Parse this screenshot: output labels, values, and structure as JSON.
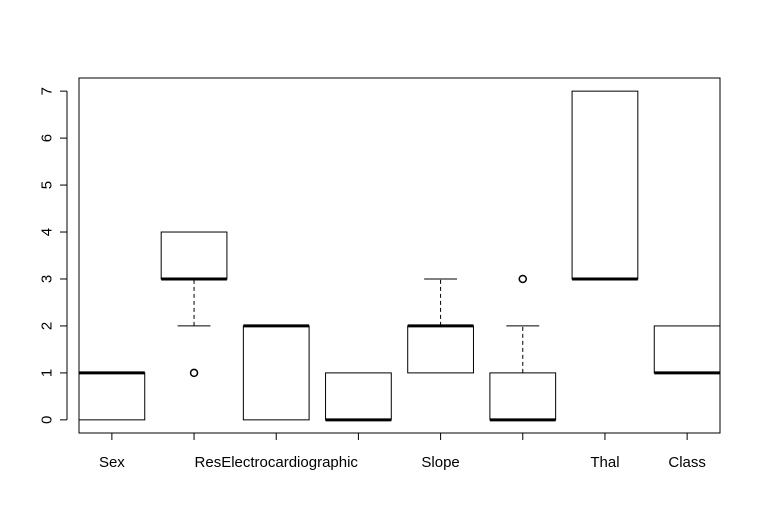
{
  "chart_data": {
    "type": "boxplot",
    "title": "",
    "xlabel": "",
    "ylabel": "",
    "ylim": [
      -0.28,
      7.28
    ],
    "y_ticks": [
      0,
      1,
      2,
      3,
      4,
      5,
      6,
      7
    ],
    "categories": [
      "Sex",
      "",
      "ResElectrocardiographic",
      "",
      "Slope",
      "",
      "Thal",
      "Class"
    ],
    "boxes": [
      {
        "name": "Sex",
        "min": 0,
        "q1": 0,
        "median": 1,
        "q3": 1,
        "max": 1,
        "outliers": []
      },
      {
        "name": "",
        "min": 2,
        "q1": 3,
        "median": 3,
        "q3": 4,
        "max": 4,
        "outliers": [
          1
        ]
      },
      {
        "name": "ResElectrocardiographic",
        "min": 0,
        "q1": 0,
        "median": 2,
        "q3": 2,
        "max": 2,
        "outliers": []
      },
      {
        "name": "",
        "min": 0,
        "q1": 0,
        "median": 0,
        "q3": 1,
        "max": 1,
        "outliers": []
      },
      {
        "name": "Slope",
        "min": 1,
        "q1": 1,
        "median": 2,
        "q3": 2,
        "max": 3,
        "outliers": []
      },
      {
        "name": "",
        "min": 0,
        "q1": 0,
        "median": 0,
        "q3": 1,
        "max": 2,
        "outliers": [
          3
        ]
      },
      {
        "name": "Thal",
        "min": 3,
        "q1": 3,
        "median": 3,
        "q3": 7,
        "max": 7,
        "outliers": []
      },
      {
        "name": "Class",
        "min": 1,
        "q1": 1,
        "median": 1,
        "q3": 2,
        "max": 2,
        "outliers": []
      }
    ],
    "grid": false,
    "legend": "none"
  }
}
